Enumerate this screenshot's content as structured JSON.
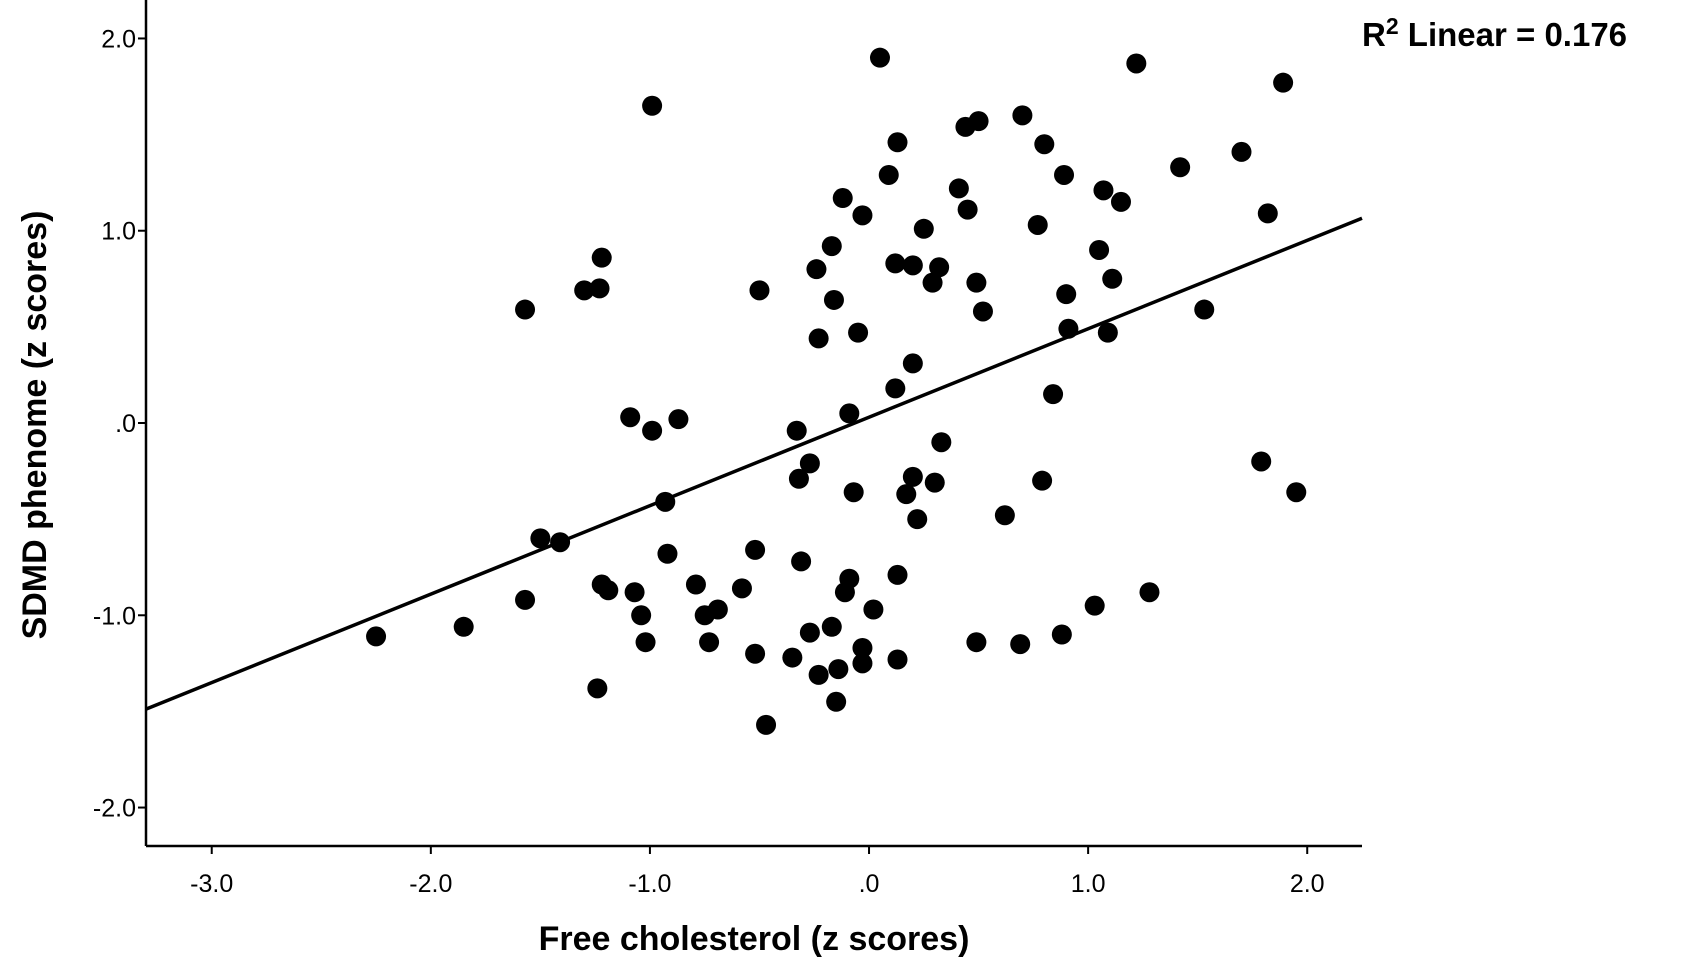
{
  "chart_data": {
    "type": "scatter",
    "xlabel": "Free cholesterol (z scores)",
    "ylabel": "SDMD phenome (z scores)",
    "xlim": [
      -3.3,
      2.25
    ],
    "ylim": [
      -2.2,
      2.2
    ],
    "x_ticks": [
      -3,
      -2,
      -1,
      0,
      1,
      2
    ],
    "x_tick_labels": [
      "-3.0",
      "-2.0",
      "-1.0",
      ".0",
      "1.0",
      "2.0"
    ],
    "y_ticks": [
      -2,
      -1,
      0,
      1,
      2
    ],
    "y_tick_labels": [
      "-2.0",
      "-1.0",
      ".0",
      "1.0",
      "2.0"
    ],
    "grid": false,
    "fit_line": {
      "label_prefix": "R",
      "label_superscript": "2",
      "label_suffix": " Linear = 0.176",
      "slope": 0.46,
      "intercept": 0.03
    },
    "marker_color": "#000000",
    "points": [
      [
        -2.25,
        -1.11
      ],
      [
        -1.85,
        -1.06
      ],
      [
        -1.57,
        0.59
      ],
      [
        -1.57,
        -0.92
      ],
      [
        -1.5,
        -0.6
      ],
      [
        -1.41,
        -0.62
      ],
      [
        -1.3,
        0.69
      ],
      [
        -1.23,
        0.7
      ],
      [
        -1.22,
        0.86
      ],
      [
        -1.24,
        -1.38
      ],
      [
        -1.22,
        -0.84
      ],
      [
        -1.19,
        -0.87
      ],
      [
        -1.09,
        0.03
      ],
      [
        -1.07,
        -0.88
      ],
      [
        -1.04,
        -1.0
      ],
      [
        -1.02,
        -1.14
      ],
      [
        -0.99,
        1.65
      ],
      [
        -0.99,
        -0.04
      ],
      [
        -0.93,
        -0.41
      ],
      [
        -0.92,
        -0.68
      ],
      [
        -0.87,
        0.02
      ],
      [
        -0.79,
        -0.84
      ],
      [
        -0.75,
        -1.0
      ],
      [
        -0.73,
        -1.14
      ],
      [
        -0.69,
        -0.97
      ],
      [
        -0.58,
        -0.86
      ],
      [
        -0.52,
        -0.66
      ],
      [
        -0.52,
        -1.2
      ],
      [
        -0.5,
        0.69
      ],
      [
        -0.47,
        -1.57
      ],
      [
        -0.35,
        -1.22
      ],
      [
        -0.33,
        -0.04
      ],
      [
        -0.32,
        -0.29
      ],
      [
        -0.31,
        -0.72
      ],
      [
        -0.27,
        -0.21
      ],
      [
        -0.27,
        -1.09
      ],
      [
        -0.24,
        0.8
      ],
      [
        -0.23,
        0.44
      ],
      [
        -0.23,
        -1.31
      ],
      [
        -0.17,
        0.92
      ],
      [
        -0.16,
        0.64
      ],
      [
        -0.17,
        -1.06
      ],
      [
        -0.15,
        -1.45
      ],
      [
        -0.14,
        -1.28
      ],
      [
        -0.12,
        1.17
      ],
      [
        -0.11,
        -0.88
      ],
      [
        -0.09,
        0.05
      ],
      [
        -0.09,
        -0.81
      ],
      [
        -0.07,
        -0.36
      ],
      [
        -0.05,
        0.47
      ],
      [
        -0.03,
        1.08
      ],
      [
        -0.03,
        -1.17
      ],
      [
        -0.03,
        -1.25
      ],
      [
        0.02,
        -0.97
      ],
      [
        0.05,
        1.9
      ],
      [
        0.09,
        1.29
      ],
      [
        0.12,
        0.83
      ],
      [
        0.12,
        0.18
      ],
      [
        0.13,
        1.46
      ],
      [
        0.13,
        -1.23
      ],
      [
        0.13,
        -0.79
      ],
      [
        0.17,
        -0.37
      ],
      [
        0.2,
        0.82
      ],
      [
        0.2,
        0.31
      ],
      [
        0.2,
        -0.28
      ],
      [
        0.22,
        -0.5
      ],
      [
        0.25,
        1.01
      ],
      [
        0.29,
        0.73
      ],
      [
        0.3,
        -0.31
      ],
      [
        0.32,
        0.81
      ],
      [
        0.33,
        -0.1
      ],
      [
        0.41,
        1.22
      ],
      [
        0.44,
        1.54
      ],
      [
        0.45,
        1.11
      ],
      [
        0.49,
        0.73
      ],
      [
        0.49,
        -1.14
      ],
      [
        0.5,
        1.57
      ],
      [
        0.52,
        0.58
      ],
      [
        0.62,
        -0.48
      ],
      [
        0.69,
        -1.15
      ],
      [
        0.7,
        1.6
      ],
      [
        0.77,
        1.03
      ],
      [
        0.79,
        -0.3
      ],
      [
        0.8,
        1.45
      ],
      [
        0.84,
        0.15
      ],
      [
        0.88,
        -1.1
      ],
      [
        0.89,
        1.29
      ],
      [
        0.9,
        0.67
      ],
      [
        0.91,
        0.49
      ],
      [
        1.03,
        -0.95
      ],
      [
        1.05,
        0.9
      ],
      [
        1.07,
        1.21
      ],
      [
        1.09,
        0.47
      ],
      [
        1.11,
        0.75
      ],
      [
        1.15,
        1.15
      ],
      [
        1.22,
        1.87
      ],
      [
        1.28,
        -0.88
      ],
      [
        1.42,
        1.33
      ],
      [
        1.53,
        0.59
      ],
      [
        1.7,
        1.41
      ],
      [
        1.79,
        -0.2
      ],
      [
        1.82,
        1.09
      ],
      [
        1.89,
        1.77
      ],
      [
        1.95,
        -0.36
      ]
    ]
  }
}
